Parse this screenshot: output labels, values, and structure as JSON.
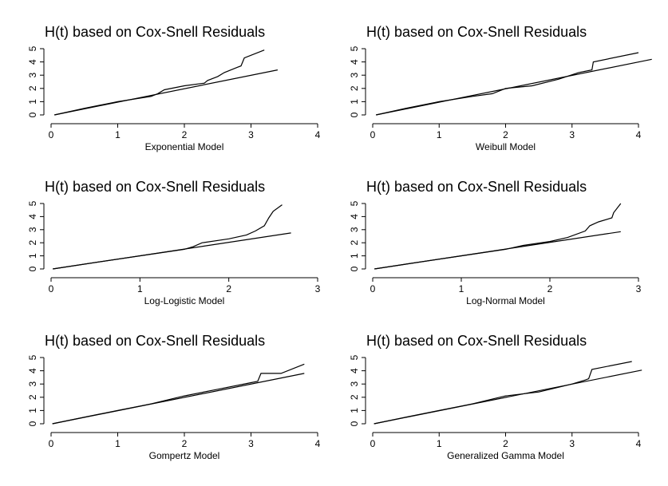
{
  "chart_data": [
    {
      "type": "line",
      "title": "H(t) based on Cox-Snell Residuals",
      "xlabel": "Exponential Model",
      "ylabel": "",
      "xlim": [
        0,
        4
      ],
      "ylim": [
        0,
        5
      ],
      "xticks": [
        "0",
        "1",
        "2",
        "3",
        "4"
      ],
      "yticks": [
        "0",
        "1",
        "2",
        "3",
        "4",
        "5"
      ],
      "series": [
        {
          "x": [
            0.05,
            0.5,
            1.0,
            1.5,
            1.6,
            1.7,
            2.0,
            2.3,
            2.35,
            2.5,
            2.6,
            2.8,
            2.85,
            2.9,
            3.2
          ],
          "y": [
            0.0,
            0.5,
            1.0,
            1.4,
            1.6,
            1.9,
            2.2,
            2.4,
            2.6,
            2.9,
            3.2,
            3.6,
            3.7,
            4.3,
            4.9
          ]
        },
        {
          "x": [
            0.05,
            3.4
          ],
          "y": [
            0.0,
            3.4
          ]
        }
      ]
    },
    {
      "type": "line",
      "title": "H(t) based on Cox-Snell Residuals",
      "xlabel": "Weibull Model",
      "ylabel": "",
      "xlim": [
        0,
        4
      ],
      "ylim": [
        0,
        5
      ],
      "xticks": [
        "0",
        "1",
        "2",
        "3",
        "4"
      ],
      "yticks": [
        "0",
        "1",
        "2",
        "3",
        "4",
        "5"
      ],
      "series": [
        {
          "x": [
            0.05,
            0.5,
            1.0,
            1.5,
            1.8,
            2.0,
            2.4,
            2.8,
            3.1,
            3.3,
            3.32,
            4.0
          ],
          "y": [
            0.0,
            0.5,
            1.0,
            1.4,
            1.6,
            2.0,
            2.2,
            2.7,
            3.2,
            3.4,
            4.0,
            4.7
          ]
        },
        {
          "x": [
            0.05,
            4.2
          ],
          "y": [
            0.0,
            4.2
          ]
        }
      ]
    },
    {
      "type": "line",
      "title": "H(t) based on Cox-Snell Residuals",
      "xlabel": "Log-Logistic Model",
      "ylabel": "",
      "xlim": [
        0,
        3
      ],
      "ylim": [
        0,
        5
      ],
      "xticks": [
        "0",
        "1",
        "2",
        "3"
      ],
      "yticks": [
        "0",
        "1",
        "2",
        "3",
        "4",
        "5"
      ],
      "series": [
        {
          "x": [
            0.02,
            0.5,
            1.0,
            1.5,
            1.6,
            1.7,
            2.0,
            2.2,
            2.3,
            2.4,
            2.45,
            2.5,
            2.6
          ],
          "y": [
            0.0,
            0.5,
            1.0,
            1.5,
            1.7,
            2.0,
            2.3,
            2.6,
            2.9,
            3.3,
            3.9,
            4.4,
            4.9
          ]
        },
        {
          "x": [
            0.02,
            2.7
          ],
          "y": [
            0.0,
            2.75
          ]
        }
      ]
    },
    {
      "type": "line",
      "title": "H(t) based on Cox-Snell Residuals",
      "xlabel": "Log-Normal Model",
      "ylabel": "",
      "xlim": [
        0,
        3
      ],
      "ylim": [
        0,
        5
      ],
      "xticks": [
        "0",
        "1",
        "2",
        "3"
      ],
      "yticks": [
        "0",
        "1",
        "2",
        "3",
        "4",
        "5"
      ],
      "series": [
        {
          "x": [
            0.02,
            0.5,
            1.0,
            1.5,
            1.7,
            2.0,
            2.2,
            2.4,
            2.45,
            2.55,
            2.7,
            2.72,
            2.8
          ],
          "y": [
            0.0,
            0.5,
            1.0,
            1.5,
            1.8,
            2.1,
            2.4,
            2.9,
            3.3,
            3.6,
            3.9,
            4.3,
            5.0
          ]
        },
        {
          "x": [
            0.02,
            2.8
          ],
          "y": [
            0.0,
            2.85
          ]
        }
      ]
    },
    {
      "type": "line",
      "title": "H(t) based on Cox-Snell Residuals",
      "xlabel": "Gompertz Model",
      "ylabel": "",
      "xlim": [
        0,
        4
      ],
      "ylim": [
        0,
        5
      ],
      "xticks": [
        "0",
        "1",
        "2",
        "3",
        "4"
      ],
      "yticks": [
        "0",
        "1",
        "2",
        "3",
        "4",
        "5"
      ],
      "series": [
        {
          "x": [
            0.02,
            0.5,
            1.0,
            1.5,
            2.0,
            2.5,
            3.0,
            3.1,
            3.15,
            3.45,
            3.8
          ],
          "y": [
            0.0,
            0.5,
            1.0,
            1.5,
            2.1,
            2.6,
            3.1,
            3.2,
            3.8,
            3.8,
            4.5
          ]
        },
        {
          "x": [
            0.02,
            3.8
          ],
          "y": [
            0.0,
            3.8
          ]
        }
      ]
    },
    {
      "type": "line",
      "title": "H(t) based on Cox-Snell Residuals",
      "xlabel": "Generalized Gamma Model",
      "ylabel": "",
      "xlim": [
        0,
        4
      ],
      "ylim": [
        0,
        5
      ],
      "xticks": [
        "0",
        "1",
        "2",
        "3",
        "4"
      ],
      "yticks": [
        "0",
        "1",
        "2",
        "3",
        "4",
        "5"
      ],
      "series": [
        {
          "x": [
            0.02,
            0.5,
            1.0,
            1.5,
            2.0,
            2.5,
            3.0,
            3.2,
            3.25,
            3.3,
            3.9
          ],
          "y": [
            0.0,
            0.5,
            1.0,
            1.5,
            2.1,
            2.4,
            3.0,
            3.3,
            3.4,
            4.1,
            4.7
          ]
        },
        {
          "x": [
            0.02,
            4.05
          ],
          "y": [
            0.0,
            4.05
          ]
        }
      ]
    }
  ]
}
